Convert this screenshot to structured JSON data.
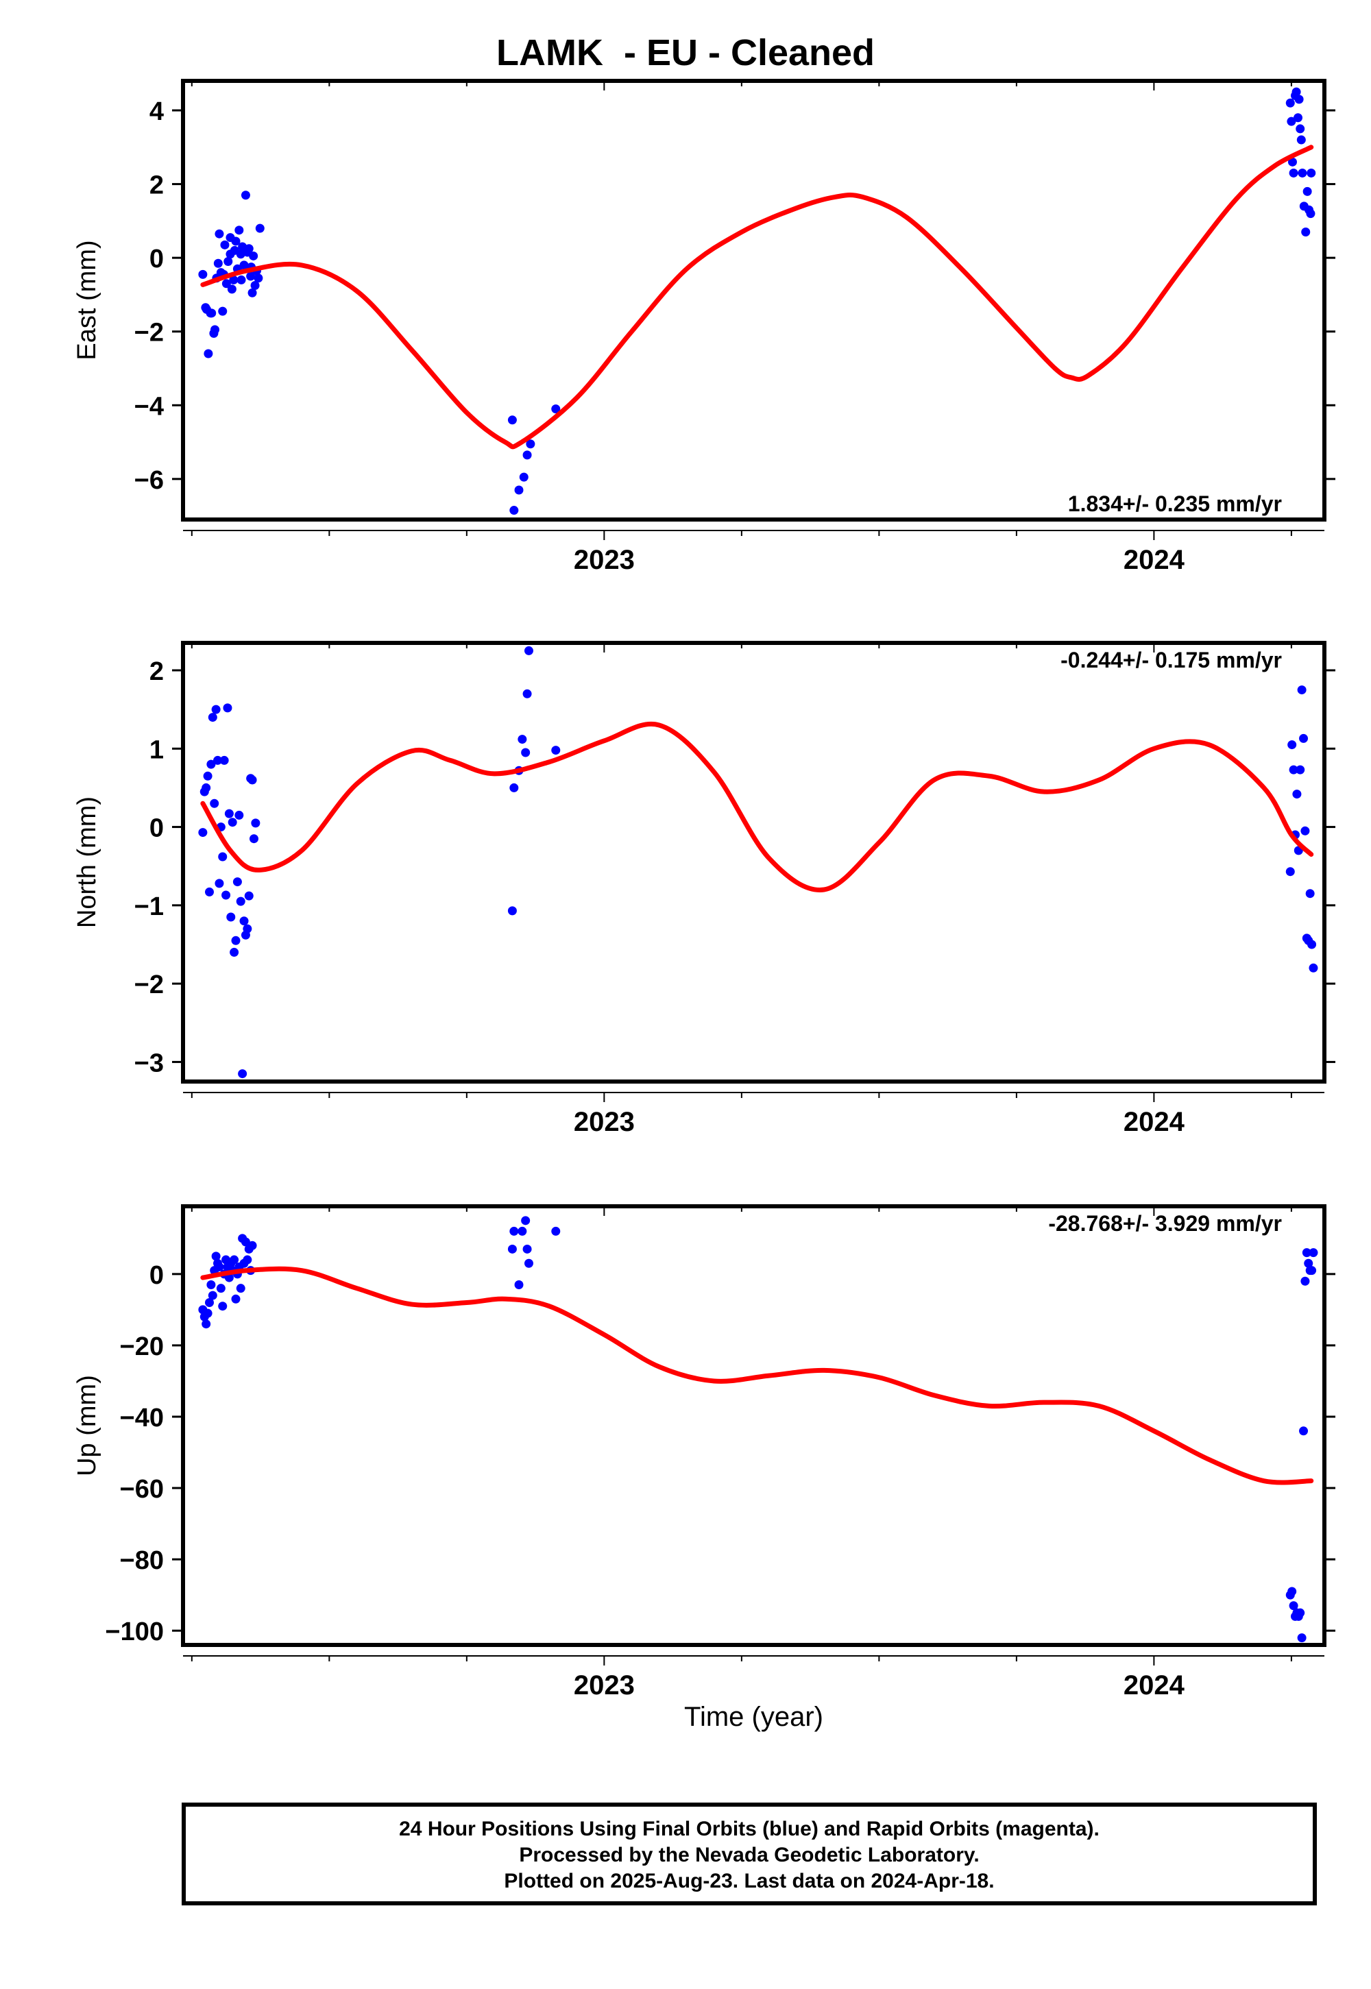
{
  "title": "LAMK  - EU - Cleaned",
  "colors": {
    "final_points": "#0000ff",
    "fit_curve": "#ff0000",
    "frame": "#000000"
  },
  "xlabel": "Time (year)",
  "footer": {
    "line1": "24 Hour Positions Using Final Orbits (blue) and Rapid Orbits (magenta).",
    "line2": "Processed by the Nevada Geodetic Laboratory.",
    "line3": "Plotted on 2025-Aug-23. Last data on 2024-Apr-18."
  },
  "chart_data": [
    {
      "type": "scatter",
      "ylabel": "East (mm)",
      "rate_label": "1.834+/- 0.235 mm/yr",
      "xlim": [
        2022.234,
        2024.31
      ],
      "ylim": [
        -7.1,
        4.8
      ],
      "x_major_ticks": [
        2023,
        2024
      ],
      "x_minor_step": 0.25,
      "yticks": [
        4,
        2,
        0,
        -2,
        -4,
        -6
      ],
      "ytick_labels": [
        "4",
        "2",
        "0",
        "−2",
        "−4",
        "−6"
      ],
      "points": [
        [
          2022.27,
          -0.45
        ],
        [
          2022.275,
          -1.35
        ],
        [
          2022.28,
          -2.6
        ],
        [
          2022.284,
          -1.5
        ],
        [
          2022.29,
          -2.05
        ],
        [
          2022.292,
          -1.95
        ],
        [
          2022.295,
          -0.55
        ],
        [
          2022.298,
          -0.15
        ],
        [
          2022.3,
          0.65
        ],
        [
          2022.303,
          -0.4
        ],
        [
          2022.306,
          -1.45
        ],
        [
          2022.31,
          0.35
        ],
        [
          2022.313,
          -0.7
        ],
        [
          2022.316,
          -0.1
        ],
        [
          2022.32,
          0.55
        ],
        [
          2022.323,
          -0.85
        ],
        [
          2022.326,
          -0.6
        ],
        [
          2022.328,
          0.2
        ],
        [
          2022.33,
          0.45
        ],
        [
          2022.333,
          -0.3
        ],
        [
          2022.336,
          0.75
        ],
        [
          2022.339,
          0.1
        ],
        [
          2022.342,
          0.3
        ],
        [
          2022.345,
          -0.2
        ],
        [
          2022.348,
          1.7
        ],
        [
          2022.351,
          0.15
        ],
        [
          2022.354,
          0.25
        ],
        [
          2022.357,
          -0.5
        ],
        [
          2022.36,
          -0.95
        ],
        [
          2022.362,
          0.05
        ],
        [
          2022.365,
          -0.75
        ],
        [
          2022.368,
          -0.35
        ],
        [
          2022.371,
          -0.55
        ],
        [
          2022.374,
          0.8
        ],
        [
          2022.277,
          -1.4
        ],
        [
          2022.286,
          -1.5
        ],
        [
          2022.308,
          -0.45
        ],
        [
          2022.32,
          0.1
        ],
        [
          2022.34,
          -0.6
        ],
        [
          2022.358,
          -0.25
        ],
        [
          2022.833,
          -4.4
        ],
        [
          2022.836,
          -6.85
        ],
        [
          2022.845,
          -6.3
        ],
        [
          2022.854,
          -5.95
        ],
        [
          2022.86,
          -5.35
        ],
        [
          2022.866,
          -5.05
        ],
        [
          2022.912,
          -4.1
        ],
        [
          2024.248,
          4.2
        ],
        [
          2024.25,
          3.7
        ],
        [
          2024.252,
          2.6
        ],
        [
          2024.254,
          2.3
        ],
        [
          2024.257,
          4.4
        ],
        [
          2024.259,
          4.5
        ],
        [
          2024.262,
          3.8
        ],
        [
          2024.264,
          4.3
        ],
        [
          2024.266,
          3.5
        ],
        [
          2024.268,
          3.2
        ],
        [
          2024.27,
          2.3
        ],
        [
          2024.273,
          1.4
        ],
        [
          2024.276,
          0.7
        ],
        [
          2024.279,
          1.8
        ],
        [
          2024.282,
          1.3
        ],
        [
          2024.285,
          1.2
        ],
        [
          2024.286,
          2.3
        ]
      ],
      "fit_curve": [
        [
          2022.27,
          -0.73
        ],
        [
          2022.35,
          -0.35
        ],
        [
          2022.45,
          -0.2
        ],
        [
          2022.55,
          -0.9
        ],
        [
          2022.65,
          -2.5
        ],
        [
          2022.75,
          -4.2
        ],
        [
          2022.82,
          -5.0
        ],
        [
          2022.85,
          -5.0
        ],
        [
          2022.95,
          -3.8
        ],
        [
          2023.05,
          -2.0
        ],
        [
          2023.15,
          -0.3
        ],
        [
          2023.25,
          0.7
        ],
        [
          2023.35,
          1.35
        ],
        [
          2023.42,
          1.65
        ],
        [
          2023.47,
          1.65
        ],
        [
          2023.55,
          1.1
        ],
        [
          2023.65,
          -0.3
        ],
        [
          2023.75,
          -1.9
        ],
        [
          2023.82,
          -3.0
        ],
        [
          2023.85,
          -3.25
        ],
        [
          2023.88,
          -3.2
        ],
        [
          2023.95,
          -2.3
        ],
        [
          2024.05,
          -0.3
        ],
        [
          2024.15,
          1.6
        ],
        [
          2024.22,
          2.5
        ],
        [
          2024.286,
          3.0
        ]
      ]
    },
    {
      "type": "scatter",
      "ylabel": "North (mm)",
      "rate_label": "-0.244+/- 0.175 mm/yr",
      "xlim": [
        2022.234,
        2024.31
      ],
      "ylim": [
        -3.25,
        2.35
      ],
      "x_major_ticks": [
        2023,
        2024
      ],
      "x_minor_step": 0.25,
      "yticks": [
        2,
        1,
        0,
        -1,
        -2,
        -3
      ],
      "ytick_labels": [
        "2",
        "1",
        "0",
        "−1",
        "−2",
        "−3"
      ],
      "points": [
        [
          2022.27,
          -0.07
        ],
        [
          2022.273,
          0.45
        ],
        [
          2022.276,
          0.5
        ],
        [
          2022.279,
          0.65
        ],
        [
          2022.282,
          -0.83
        ],
        [
          2022.285,
          0.8
        ],
        [
          2022.288,
          1.4
        ],
        [
          2022.291,
          0.3
        ],
        [
          2022.294,
          1.5
        ],
        [
          2022.297,
          0.85
        ],
        [
          2022.3,
          -0.72
        ],
        [
          2022.303,
          0.0
        ],
        [
          2022.306,
          -0.38
        ],
        [
          2022.309,
          0.85
        ],
        [
          2022.312,
          -0.87
        ],
        [
          2022.315,
          1.52
        ],
        [
          2022.318,
          0.17
        ],
        [
          2022.321,
          -1.15
        ],
        [
          2022.324,
          0.06
        ],
        [
          2022.327,
          -1.6
        ],
        [
          2022.33,
          -1.45
        ],
        [
          2022.333,
          -0.7
        ],
        [
          2022.336,
          0.15
        ],
        [
          2022.339,
          -0.95
        ],
        [
          2022.342,
          -3.15
        ],
        [
          2022.345,
          -1.2
        ],
        [
          2022.348,
          -1.38
        ],
        [
          2022.351,
          -1.3
        ],
        [
          2022.354,
          -0.88
        ],
        [
          2022.357,
          0.62
        ],
        [
          2022.36,
          0.6
        ],
        [
          2022.363,
          -0.15
        ],
        [
          2022.366,
          0.05
        ],
        [
          2022.833,
          -1.07
        ],
        [
          2022.836,
          0.5
        ],
        [
          2022.845,
          0.72
        ],
        [
          2022.851,
          1.12
        ],
        [
          2022.857,
          0.95
        ],
        [
          2022.86,
          1.7
        ],
        [
          2022.863,
          2.25
        ],
        [
          2022.912,
          0.98
        ],
        [
          2024.248,
          -0.57
        ],
        [
          2024.251,
          1.05
        ],
        [
          2024.254,
          0.73
        ],
        [
          2024.257,
          -0.1
        ],
        [
          2024.26,
          0.42
        ],
        [
          2024.263,
          -0.3
        ],
        [
          2024.266,
          0.73
        ],
        [
          2024.269,
          1.75
        ],
        [
          2024.272,
          1.13
        ],
        [
          2024.275,
          -0.05
        ],
        [
          2024.278,
          -1.42
        ],
        [
          2024.281,
          -1.45
        ],
        [
          2024.284,
          -0.85
        ],
        [
          2024.287,
          -1.5
        ],
        [
          2024.29,
          -1.8
        ]
      ],
      "fit_curve": [
        [
          2022.27,
          0.3
        ],
        [
          2022.32,
          -0.3
        ],
        [
          2022.37,
          -0.55
        ],
        [
          2022.45,
          -0.3
        ],
        [
          2022.55,
          0.55
        ],
        [
          2022.65,
          0.97
        ],
        [
          2022.72,
          0.85
        ],
        [
          2022.8,
          0.68
        ],
        [
          2022.9,
          0.83
        ],
        [
          2023.0,
          1.1
        ],
        [
          2023.1,
          1.3
        ],
        [
          2023.2,
          0.7
        ],
        [
          2023.3,
          -0.4
        ],
        [
          2023.4,
          -0.8
        ],
        [
          2023.5,
          -0.2
        ],
        [
          2023.6,
          0.6
        ],
        [
          2023.7,
          0.65
        ],
        [
          2023.8,
          0.45
        ],
        [
          2023.9,
          0.6
        ],
        [
          2024.0,
          1.0
        ],
        [
          2024.1,
          1.05
        ],
        [
          2024.2,
          0.5
        ],
        [
          2024.25,
          -0.1
        ],
        [
          2024.286,
          -0.35
        ]
      ]
    },
    {
      "type": "scatter",
      "ylabel": "Up (mm)",
      "rate_label": "-28.768+/- 3.929 mm/yr",
      "xlim": [
        2022.234,
        2024.31
      ],
      "ylim": [
        -104,
        19
      ],
      "x_major_ticks": [
        2023,
        2024
      ],
      "x_minor_step": 0.25,
      "yticks": [
        0,
        -20,
        -40,
        -60,
        -80,
        -100
      ],
      "ytick_labels": [
        "0",
        "−20",
        "−40",
        "−60",
        "−80",
        "−100"
      ],
      "points": [
        [
          2022.27,
          -10
        ],
        [
          2022.273,
          -12
        ],
        [
          2022.276,
          -14
        ],
        [
          2022.279,
          -11
        ],
        [
          2022.282,
          -8
        ],
        [
          2022.285,
          -3
        ],
        [
          2022.288,
          -6
        ],
        [
          2022.291,
          1
        ],
        [
          2022.294,
          5
        ],
        [
          2022.297,
          3
        ],
        [
          2022.3,
          2
        ],
        [
          2022.303,
          -4
        ],
        [
          2022.306,
          -9
        ],
        [
          2022.309,
          0
        ],
        [
          2022.312,
          4
        ],
        [
          2022.315,
          2
        ],
        [
          2022.318,
          -1
        ],
        [
          2022.321,
          3
        ],
        [
          2022.324,
          1
        ],
        [
          2022.327,
          4
        ],
        [
          2022.33,
          -7
        ],
        [
          2022.333,
          0
        ],
        [
          2022.336,
          2
        ],
        [
          2022.339,
          -4
        ],
        [
          2022.342,
          10
        ],
        [
          2022.345,
          3
        ],
        [
          2022.348,
          9
        ],
        [
          2022.351,
          4
        ],
        [
          2022.354,
          7
        ],
        [
          2022.357,
          1
        ],
        [
          2022.36,
          8
        ],
        [
          2022.833,
          7
        ],
        [
          2022.836,
          12
        ],
        [
          2022.845,
          -3
        ],
        [
          2022.851,
          12
        ],
        [
          2022.857,
          15
        ],
        [
          2022.86,
          7
        ],
        [
          2022.863,
          3
        ],
        [
          2022.912,
          12
        ],
        [
          2024.248,
          -90
        ],
        [
          2024.251,
          -89
        ],
        [
          2024.254,
          -93
        ],
        [
          2024.257,
          -96
        ],
        [
          2024.26,
          -95
        ],
        [
          2024.263,
          -96
        ],
        [
          2024.266,
          -95
        ],
        [
          2024.269,
          -102
        ],
        [
          2024.272,
          -44
        ],
        [
          2024.275,
          -2
        ],
        [
          2024.278,
          6
        ],
        [
          2024.281,
          3
        ],
        [
          2024.284,
          1
        ],
        [
          2024.287,
          1
        ],
        [
          2024.29,
          6
        ]
      ],
      "fit_curve": [
        [
          2022.27,
          -1
        ],
        [
          2022.35,
          1
        ],
        [
          2022.45,
          1
        ],
        [
          2022.55,
          -4
        ],
        [
          2022.65,
          -8.5
        ],
        [
          2022.75,
          -8
        ],
        [
          2022.82,
          -7
        ],
        [
          2022.9,
          -9
        ],
        [
          2023.0,
          -17
        ],
        [
          2023.1,
          -26
        ],
        [
          2023.2,
          -30
        ],
        [
          2023.3,
          -28.5
        ],
        [
          2023.4,
          -27
        ],
        [
          2023.5,
          -29
        ],
        [
          2023.6,
          -34
        ],
        [
          2023.7,
          -37
        ],
        [
          2023.8,
          -36
        ],
        [
          2023.9,
          -37
        ],
        [
          2024.0,
          -44
        ],
        [
          2024.1,
          -52
        ],
        [
          2024.2,
          -58
        ],
        [
          2024.286,
          -58
        ]
      ]
    }
  ]
}
